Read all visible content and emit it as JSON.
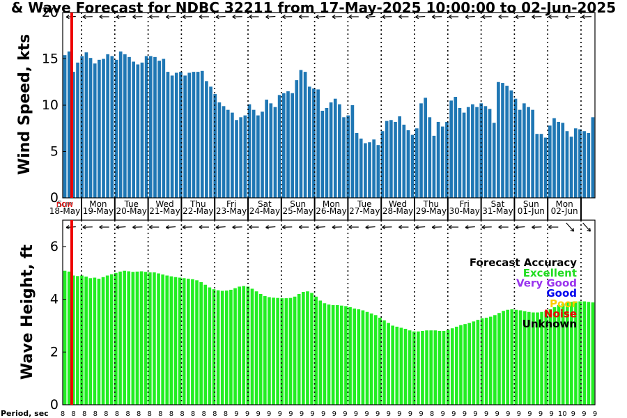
{
  "title": "& Wave Forecast for NDBC 32211 from 17-May-2025 10:00:00 to 02-Jun-2025",
  "legend": {
    "title": "Forecast Accuracy",
    "items": [
      {
        "label": "Excellent",
        "color": "#22dd22"
      },
      {
        "label": "Very Good",
        "color": "#9933ee"
      },
      {
        "label": "Good",
        "color": "#0000ee"
      },
      {
        "label": "Poor",
        "color": "#ffcc00"
      },
      {
        "label": "Noise",
        "color": "#ee0000"
      },
      {
        "label": "Unknown",
        "color": "#000000"
      }
    ]
  },
  "colors": {
    "wind_bar": "#1f77b4",
    "wave_bar": "#22ee22",
    "now_line": "#ee0000"
  },
  "chart_data": [
    {
      "type": "bar",
      "ylabel": "Wind Speed, kts",
      "ylim": [
        0,
        20
      ],
      "yticks": [
        "0",
        "5",
        "10",
        "15",
        "20"
      ],
      "now_label": "now",
      "days": [
        {
          "dow": "Sun",
          "date": "18-May"
        },
        {
          "dow": "Mon",
          "date": "19-May"
        },
        {
          "dow": "Tue",
          "date": "20-May"
        },
        {
          "dow": "Wed",
          "date": "21-May"
        },
        {
          "dow": "Thu",
          "date": "22-May"
        },
        {
          "dow": "Fri",
          "date": "23-May"
        },
        {
          "dow": "Sat",
          "date": "24-May"
        },
        {
          "dow": "Sun",
          "date": "25-May"
        },
        {
          "dow": "Mon",
          "date": "26-May"
        },
        {
          "dow": "Tue",
          "date": "27-May"
        },
        {
          "dow": "Wed",
          "date": "28-May"
        },
        {
          "dow": "Thu",
          "date": "29-May"
        },
        {
          "dow": "Fri",
          "date": "30-May"
        },
        {
          "dow": "Sat",
          "date": "31-May"
        },
        {
          "dow": "Sun",
          "date": "01-Jun"
        },
        {
          "dow": "Mon",
          "date": "02-Jun"
        }
      ],
      "values": [
        15.4,
        15.8,
        13.6,
        14.6,
        15.3,
        15.7,
        15.1,
        14.5,
        14.9,
        15.0,
        15.5,
        15.3,
        14.9,
        15.8,
        15.5,
        15.2,
        14.7,
        14.4,
        14.6,
        15.3,
        15.3,
        15.2,
        14.8,
        15.0,
        13.6,
        13.2,
        13.5,
        13.6,
        13.2,
        13.5,
        13.6,
        13.6,
        13.7,
        12.6,
        12.0,
        11.2,
        10.3,
        9.9,
        9.5,
        9.2,
        8.4,
        8.7,
        8.9,
        10.1,
        9.5,
        8.9,
        9.3,
        10.6,
        10.2,
        9.8,
        11.1,
        11.3,
        11.5,
        11.3,
        12.7,
        13.8,
        13.6,
        12.0,
        11.8,
        11.7,
        9.4,
        9.7,
        10.3,
        10.7,
        10.1,
        8.7,
        8.9,
        10.0,
        7.0,
        6.4,
        5.9,
        6.0,
        6.3,
        5.7,
        7.2,
        8.3,
        8.4,
        8.2,
        8.8,
        7.9,
        7.3,
        6.8,
        7.5,
        10.2,
        10.8,
        8.7,
        6.7,
        8.2,
        7.7,
        8.2,
        10.5,
        10.9,
        9.7,
        9.2,
        9.8,
        10.1,
        9.8,
        10.2,
        9.9,
        9.6,
        8.1,
        12.5,
        12.4,
        12.1,
        11.6,
        10.7,
        9.5,
        10.2,
        9.8,
        9.5,
        6.9,
        6.9,
        6.5,
        7.8,
        8.6,
        8.2,
        8.1,
        7.2,
        6.6,
        7.5,
        7.4,
        7.2,
        7.0,
        8.7
      ]
    },
    {
      "type": "bar",
      "ylabel": "Wave Height, ft",
      "ylim": [
        0,
        7
      ],
      "yticks": [
        "0",
        "2",
        "4",
        "6"
      ],
      "values": [
        5.08,
        5.05,
        4.9,
        4.88,
        4.9,
        4.86,
        4.8,
        4.82,
        4.78,
        4.84,
        4.9,
        4.95,
        5.0,
        5.05,
        5.08,
        5.06,
        5.04,
        5.05,
        5.06,
        5.04,
        5.02,
        5.02,
        4.98,
        4.94,
        4.9,
        4.87,
        4.84,
        4.82,
        4.8,
        4.78,
        4.76,
        4.72,
        4.65,
        4.55,
        4.45,
        4.38,
        4.34,
        4.32,
        4.33,
        4.36,
        4.42,
        4.48,
        4.5,
        4.48,
        4.4,
        4.3,
        4.2,
        4.12,
        4.08,
        4.06,
        4.05,
        4.04,
        4.04,
        4.05,
        4.1,
        4.2,
        4.28,
        4.3,
        4.24,
        4.1,
        3.95,
        3.85,
        3.8,
        3.78,
        3.78,
        3.76,
        3.74,
        3.7,
        3.65,
        3.62,
        3.58,
        3.52,
        3.46,
        3.4,
        3.3,
        3.2,
        3.1,
        3.0,
        2.96,
        2.92,
        2.88,
        2.82,
        2.78,
        2.78,
        2.8,
        2.82,
        2.82,
        2.82,
        2.8,
        2.8,
        2.84,
        2.9,
        2.96,
        3.02,
        3.06,
        3.1,
        3.16,
        3.22,
        3.28,
        3.3,
        3.34,
        3.4,
        3.48,
        3.56,
        3.6,
        3.62,
        3.6,
        3.58,
        3.55,
        3.52,
        3.5,
        3.5,
        3.52,
        3.56,
        3.62,
        3.7,
        3.78,
        3.84,
        3.88,
        3.9,
        3.92,
        3.92,
        3.92,
        3.9,
        3.88
      ]
    }
  ],
  "period": {
    "label": "Period, sec",
    "values": [
      "8",
      "8",
      "8",
      "8",
      "8",
      "8",
      "8",
      "8",
      "8",
      "8",
      "8",
      "8",
      "8",
      "8",
      "8",
      "8",
      "9",
      "9",
      "9",
      "9",
      "9",
      "9",
      "9",
      "9",
      "9",
      "9",
      "9",
      "9",
      "9",
      "9",
      "9",
      "9",
      "9",
      "9",
      "8",
      "9",
      "9",
      "9",
      "9",
      "9",
      "9",
      "9",
      "9",
      "9",
      "9",
      "9",
      "10",
      "9",
      "9",
      "9"
    ]
  }
}
